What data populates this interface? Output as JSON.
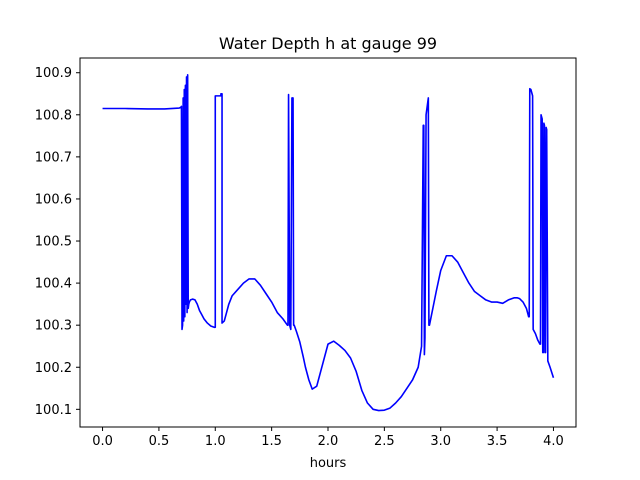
{
  "chart_data": {
    "type": "line",
    "title": "Water Depth h at gauge 99",
    "xlabel": "hours",
    "ylabel": "",
    "xlim": [
      -0.2,
      4.2
    ],
    "ylim": [
      100.058,
      100.935
    ],
    "x_ticks": [
      0.0,
      0.5,
      1.0,
      1.5,
      2.0,
      2.5,
      3.0,
      3.5,
      4.0
    ],
    "x_tick_labels": [
      "0.0",
      "0.5",
      "1.0",
      "1.5",
      "2.0",
      "2.5",
      "3.0",
      "3.5",
      "4.0"
    ],
    "y_ticks": [
      100.1,
      100.2,
      100.3,
      100.4,
      100.5,
      100.6,
      100.7,
      100.8,
      100.9
    ],
    "y_tick_labels": [
      "100.1",
      "100.2",
      "100.3",
      "100.4",
      "100.5",
      "100.6",
      "100.7",
      "100.8",
      "100.9"
    ],
    "grid": false,
    "series": [
      {
        "color": "#0000ff",
        "x": [
          0.0,
          0.2,
          0.4,
          0.55,
          0.68,
          0.695,
          0.7,
          0.705,
          0.71,
          0.715,
          0.72,
          0.725,
          0.73,
          0.735,
          0.74,
          0.745,
          0.75,
          0.755,
          0.76,
          0.765,
          0.77,
          0.78,
          0.8,
          0.82,
          0.84,
          0.86,
          0.88,
          0.9,
          0.93,
          0.96,
          0.99,
          1.0,
          1.0,
          1.05,
          1.05,
          1.06,
          1.06,
          1.08,
          1.1,
          1.12,
          1.15,
          1.2,
          1.25,
          1.3,
          1.35,
          1.4,
          1.45,
          1.5,
          1.55,
          1.6,
          1.64,
          1.645,
          1.65,
          1.66,
          1.67,
          1.68,
          1.69,
          1.695,
          1.7,
          1.72,
          1.75,
          1.78,
          1.8,
          1.83,
          1.86,
          1.9,
          1.95,
          2.0,
          2.05,
          2.1,
          2.15,
          2.2,
          2.25,
          2.3,
          2.35,
          2.4,
          2.45,
          2.5,
          2.55,
          2.6,
          2.65,
          2.7,
          2.75,
          2.8,
          2.83,
          2.845,
          2.85,
          2.855,
          2.86,
          2.87,
          2.88,
          2.89,
          2.895,
          2.9,
          2.93,
          2.96,
          3.0,
          3.05,
          3.1,
          3.15,
          3.2,
          3.25,
          3.3,
          3.35,
          3.4,
          3.45,
          3.5,
          3.55,
          3.6,
          3.65,
          3.68,
          3.7,
          3.73,
          3.76,
          3.78,
          3.785,
          3.79,
          3.8,
          3.81,
          3.815,
          3.82,
          3.84,
          3.86,
          3.88,
          3.885,
          3.89,
          3.9,
          3.905,
          3.91,
          3.915,
          3.92,
          3.925,
          3.93,
          3.935,
          3.94,
          3.95,
          3.97,
          4.0
        ],
        "y": [
          100.815,
          100.815,
          100.814,
          100.814,
          100.816,
          100.818,
          100.82,
          100.29,
          100.3,
          100.84,
          100.31,
          100.86,
          100.32,
          100.87,
          100.35,
          100.89,
          100.33,
          100.895,
          100.34,
          100.35,
          100.355,
          100.36,
          100.362,
          100.36,
          100.35,
          100.335,
          100.325,
          100.315,
          100.305,
          100.298,
          100.295,
          100.295,
          100.845,
          100.845,
          100.85,
          100.85,
          100.305,
          100.31,
          100.33,
          100.35,
          100.37,
          100.385,
          100.4,
          100.41,
          100.41,
          100.395,
          100.375,
          100.355,
          100.33,
          100.315,
          100.3,
          100.3,
          100.848,
          100.3,
          100.29,
          100.84,
          100.84,
          100.3,
          100.3,
          100.285,
          100.26,
          100.225,
          100.2,
          100.17,
          100.148,
          100.155,
          100.205,
          100.255,
          100.262,
          100.252,
          100.24,
          100.222,
          100.19,
          100.145,
          100.115,
          100.1,
          100.097,
          100.098,
          100.103,
          100.115,
          100.13,
          100.15,
          100.17,
          100.2,
          100.25,
          100.775,
          100.775,
          100.23,
          100.27,
          100.8,
          100.82,
          100.84,
          100.3,
          100.3,
          100.34,
          100.38,
          100.43,
          100.465,
          100.465,
          100.45,
          100.425,
          100.4,
          100.38,
          100.37,
          100.36,
          100.355,
          100.355,
          100.352,
          100.36,
          100.365,
          100.365,
          100.363,
          100.355,
          100.34,
          100.32,
          100.32,
          100.862,
          100.86,
          100.85,
          100.845,
          100.29,
          100.28,
          100.265,
          100.255,
          100.255,
          100.8,
          100.79,
          100.235,
          100.235,
          100.78,
          100.775,
          100.235,
          100.235,
          100.77,
          100.765,
          100.215,
          100.2,
          100.175
        ]
      }
    ]
  }
}
